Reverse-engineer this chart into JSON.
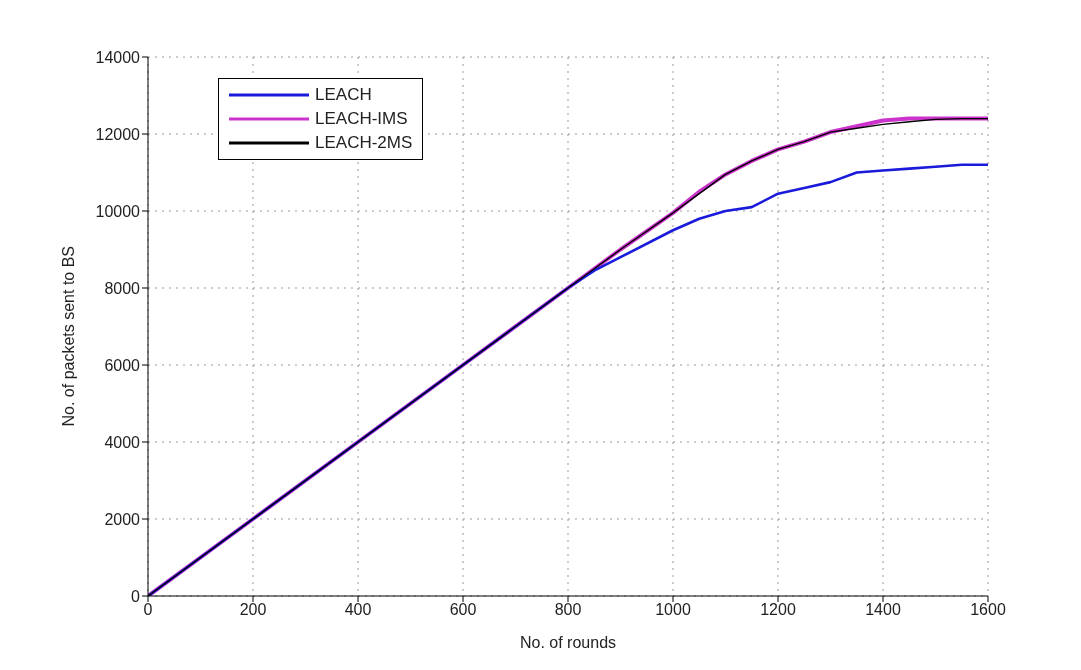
{
  "chart_data": {
    "type": "line",
    "xlabel": "No. of rounds",
    "ylabel": "No. of packets sent to BS",
    "x": [
      0,
      200,
      400,
      600,
      800,
      850,
      900,
      1000,
      1050,
      1100,
      1150,
      1200,
      1250,
      1300,
      1350,
      1400,
      1450,
      1500,
      1550,
      1600
    ],
    "series": [
      {
        "name": "LEACH",
        "color": "#1a1adb",
        "values": [
          0,
          2000,
          4000,
          6000,
          8000,
          8450,
          8800,
          9500,
          9800,
          10000,
          10100,
          10450,
          10600,
          10750,
          11000,
          11050,
          11100,
          11150,
          11200,
          11200
        ]
      },
      {
        "name": "LEACH-IMS",
        "color": "#cc33cc",
        "values": [
          0,
          2000,
          4000,
          6000,
          8000,
          8500,
          9000,
          9950,
          10500,
          10950,
          11300,
          11600,
          11800,
          12050,
          12200,
          12350,
          12400,
          12400,
          12400,
          12400
        ]
      },
      {
        "name": "LEACH-2MS",
        "color": "#000000",
        "values": [
          0,
          2000,
          4000,
          6000,
          8000,
          8500,
          9000,
          9950,
          10450,
          10950,
          11300,
          11600,
          11800,
          12050,
          12150,
          12250,
          12320,
          12380,
          12400,
          12400
        ]
      }
    ],
    "xlim": [
      0,
      1600
    ],
    "xticks": [
      0,
      200,
      400,
      600,
      800,
      1000,
      1200,
      1400,
      1600
    ],
    "ylim": [
      0,
      14000
    ],
    "yticks": [
      0,
      2000,
      4000,
      6000,
      8000,
      10000,
      12000,
      14000
    ],
    "grid": true,
    "legend": "top left",
    "line_style": "solid",
    "marker": "none"
  }
}
